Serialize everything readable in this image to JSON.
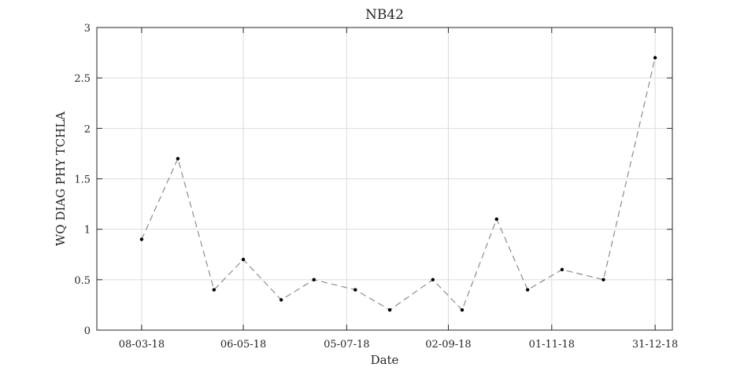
{
  "chart_data": {
    "type": "line",
    "title": "NB42",
    "xlabel": "Date",
    "ylabel": "WQ DIAG PHY TCHLA",
    "x_tick_labels": [
      "08-03-18",
      "06-05-18",
      "05-07-18",
      "02-09-18",
      "01-11-18",
      "31-12-18"
    ],
    "y_tick_labels": [
      "0",
      "0.5",
      "1",
      "1.5",
      "2",
      "2.5",
      "3"
    ],
    "x_tick_dates": [
      "2018-03-08",
      "2018-05-06",
      "2018-07-05",
      "2018-09-02",
      "2018-11-01",
      "2018-12-31"
    ],
    "xlim": [
      "2018-02-10",
      "2019-01-10"
    ],
    "ylim": [
      0,
      3
    ],
    "grid": true,
    "line_style": "dashed",
    "line_color": "#8c8c8c",
    "marker_color": "#000000",
    "series": [
      {
        "x": [
          "2018-03-08",
          "2018-03-29",
          "2018-04-19",
          "2018-05-06",
          "2018-05-28",
          "2018-06-16",
          "2018-07-10",
          "2018-07-30",
          "2018-08-24",
          "2018-09-10",
          "2018-09-30",
          "2018-10-18",
          "2018-11-07",
          "2018-12-01",
          "2018-12-31"
        ],
        "values": [
          0.9,
          1.7,
          0.4,
          0.7,
          0.3,
          0.5,
          0.4,
          0.2,
          0.5,
          0.2,
          1.1,
          0.4,
          0.6,
          0.5,
          2.7
        ]
      }
    ]
  }
}
